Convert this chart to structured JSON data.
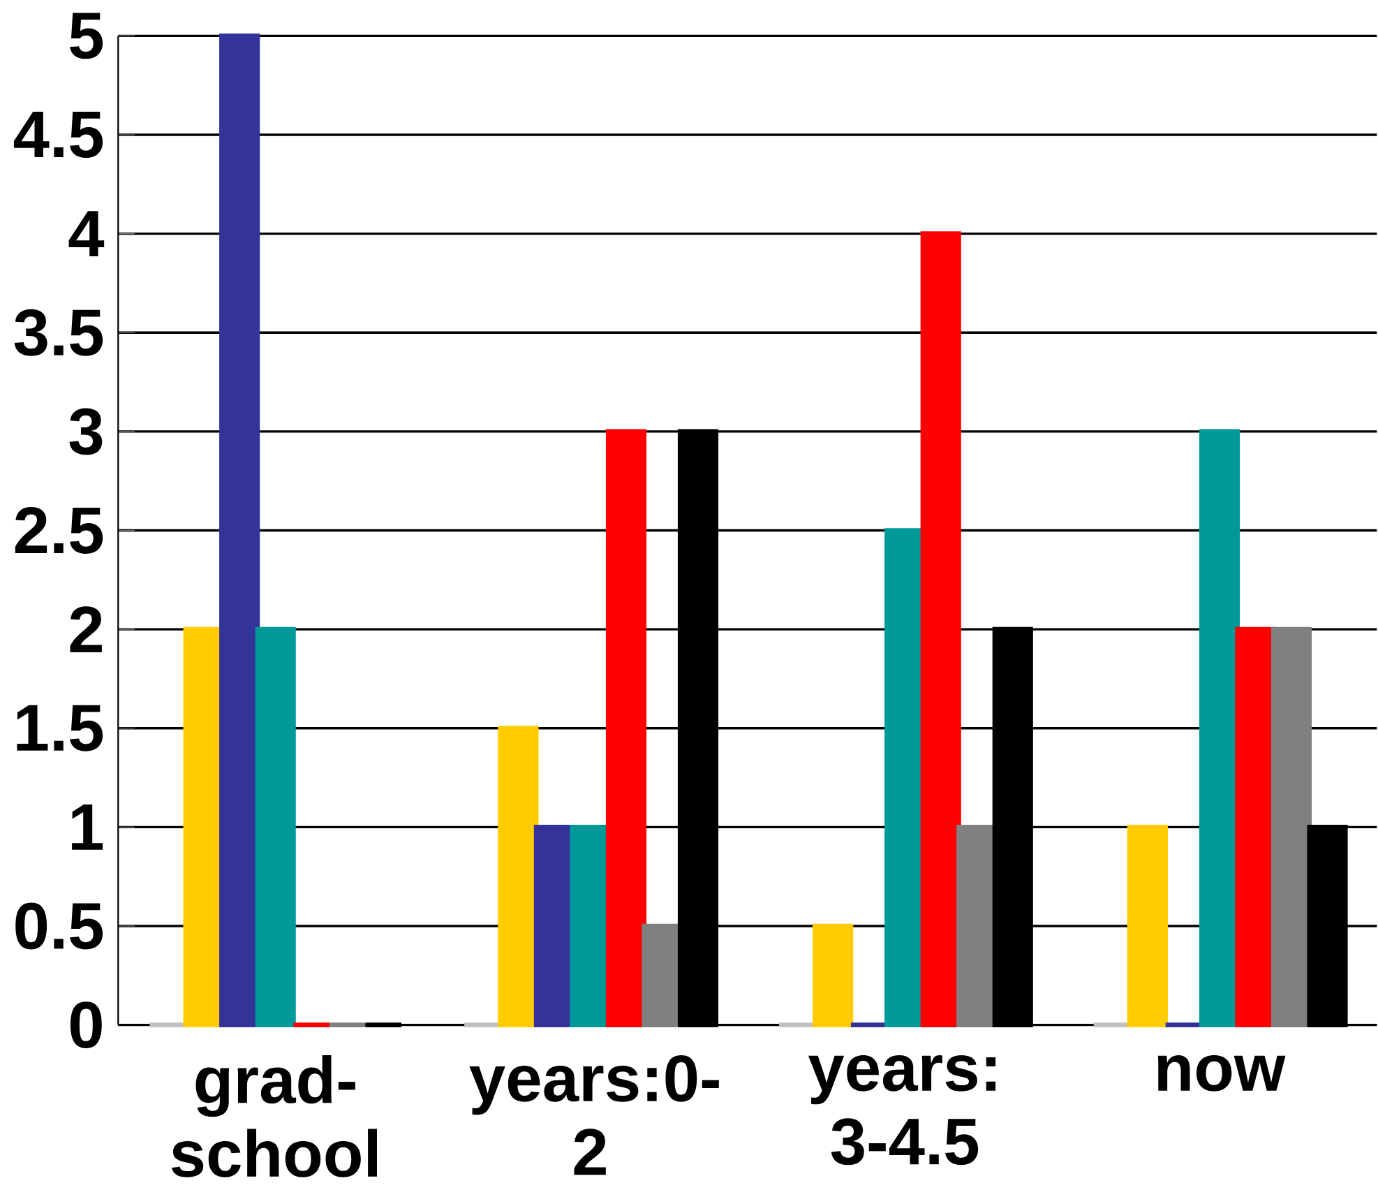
{
  "chart_data": {
    "type": "bar",
    "categories": [
      "grad-school",
      "years:0-2",
      "years: 3-4.5",
      "now"
    ],
    "series": [
      {
        "color": "#c0c0c0",
        "values": [
          0,
          0,
          0,
          0
        ]
      },
      {
        "color": "#ffcc00",
        "values": [
          2,
          1.5,
          0.5,
          1
        ]
      },
      {
        "color": "#333399",
        "values": [
          5,
          1,
          0,
          0
        ]
      },
      {
        "color": "#009999",
        "values": [
          2,
          1,
          2.5,
          3
        ]
      },
      {
        "color": "#ff0000",
        "values": [
          0,
          3,
          4,
          2
        ]
      },
      {
        "color": "#808080",
        "values": [
          0,
          0.5,
          1,
          2
        ]
      },
      {
        "color": "#000000",
        "values": [
          0,
          3,
          2,
          1
        ]
      }
    ],
    "ylim": [
      0,
      5
    ],
    "yticks": [
      0,
      0.5,
      1,
      1.5,
      2,
      2.5,
      3,
      3.5,
      4,
      4.5,
      5
    ],
    "grid": "y"
  }
}
